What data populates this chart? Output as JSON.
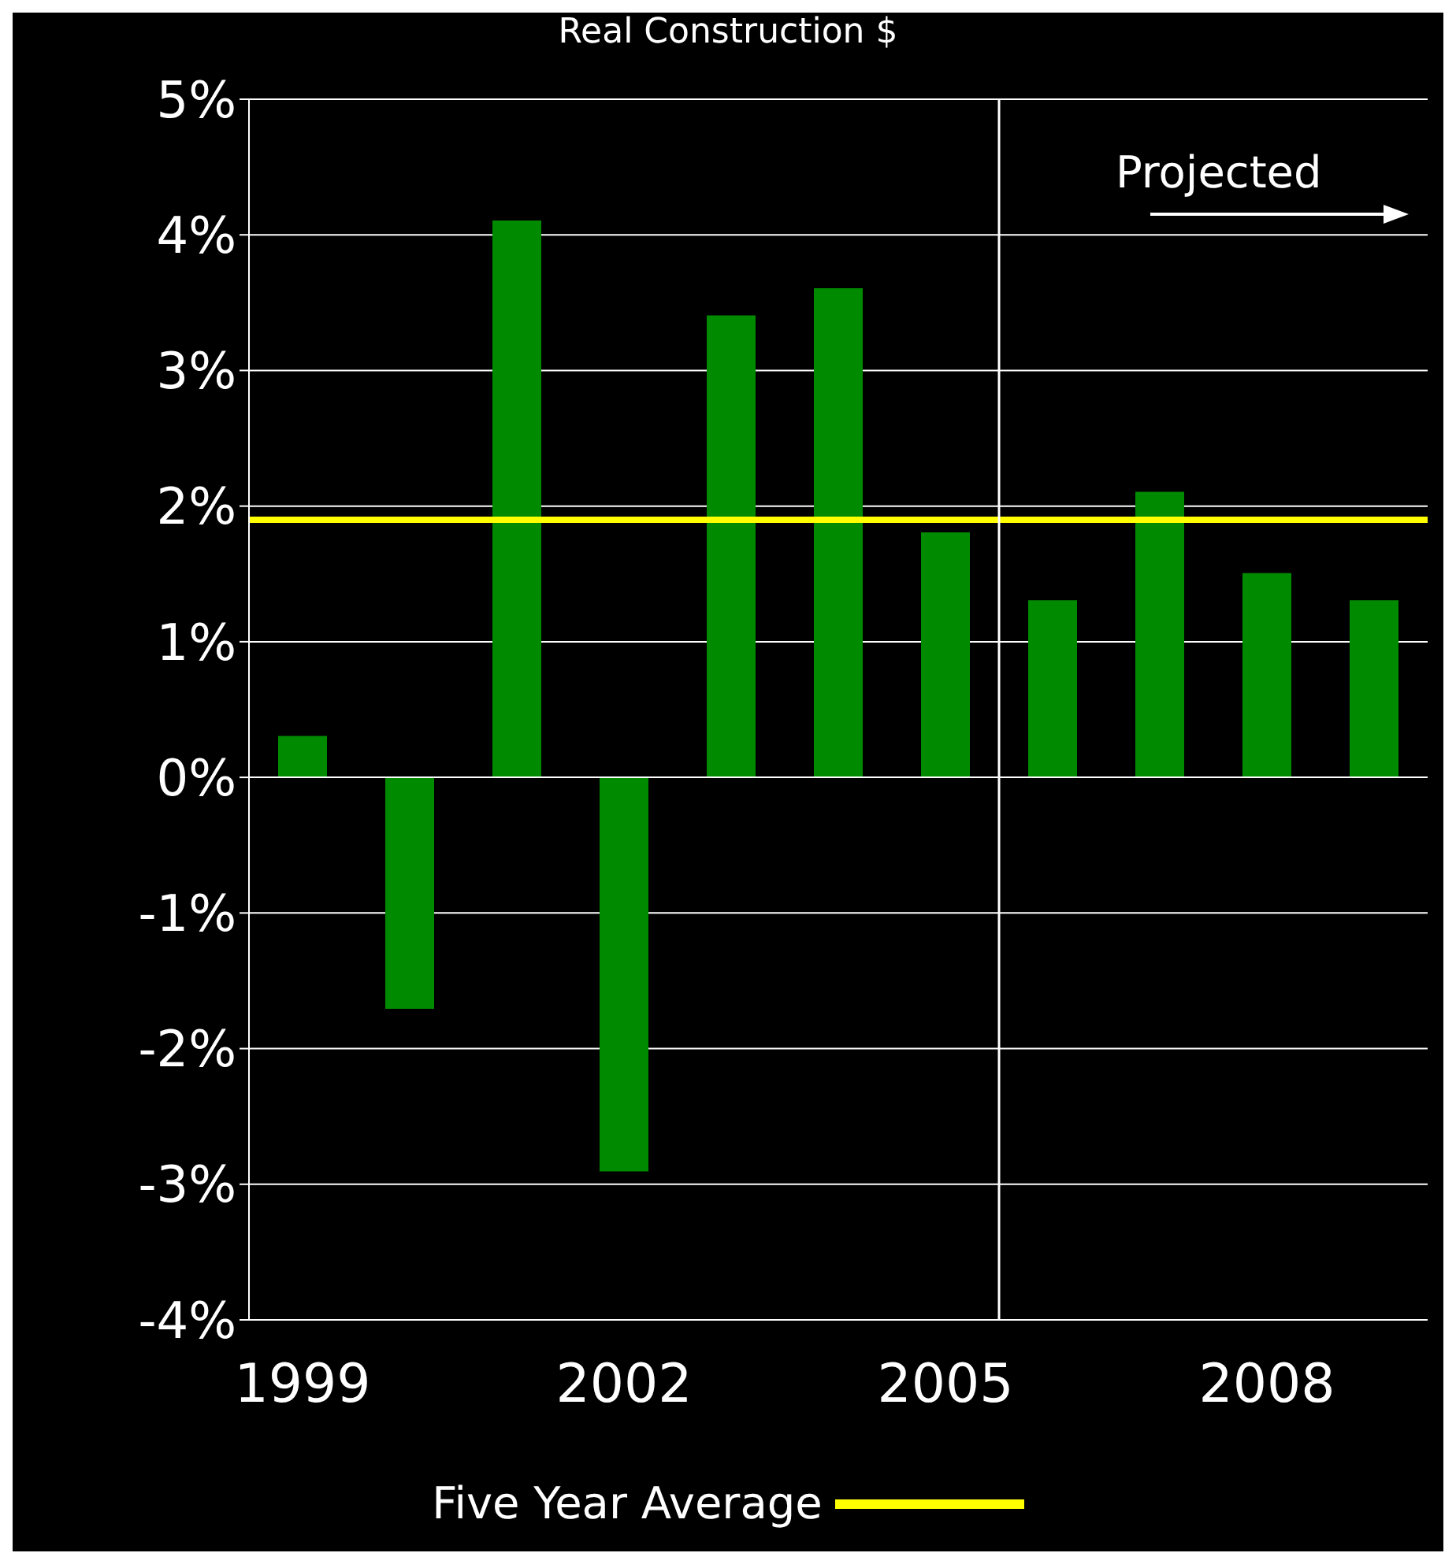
{
  "chart_data": {
    "type": "bar",
    "title": "Real Construction $",
    "x": [
      1999,
      2000,
      2001,
      2002,
      2003,
      2004,
      2005,
      2006,
      2007,
      2008,
      2009
    ],
    "values": [
      0.3,
      -1.7,
      4.1,
      -2.9,
      3.4,
      3.6,
      1.8,
      1.3,
      2.1,
      1.5,
      1.3
    ],
    "color": "#008a00",
    "xlim": [
      1998.5,
      2009.5
    ],
    "xticks": [
      1999,
      2002,
      2005,
      2008
    ],
    "ylim": [
      -4,
      5
    ],
    "yticks": [
      {
        "value": -4,
        "label": "-4%"
      },
      {
        "value": -3,
        "label": "-3%"
      },
      {
        "value": -2,
        "label": "-2%"
      },
      {
        "value": -1,
        "label": "-1%"
      },
      {
        "value": 0,
        "label": "0%"
      },
      {
        "value": 1,
        "label": "1%"
      },
      {
        "value": 2,
        "label": "2%"
      },
      {
        "value": 3,
        "label": "3%"
      },
      {
        "value": 4,
        "label": "4%"
      },
      {
        "value": 5,
        "label": "5%"
      }
    ],
    "ref_lines": [
      {
        "axis": "y",
        "value": 1.9,
        "label": "Five Year Average",
        "color": "#ffff00"
      },
      {
        "axis": "x",
        "value": 2005.5,
        "color": "#ffffff"
      }
    ],
    "annotations": [
      "Projected"
    ],
    "grid": "y",
    "legend": "bottom"
  }
}
